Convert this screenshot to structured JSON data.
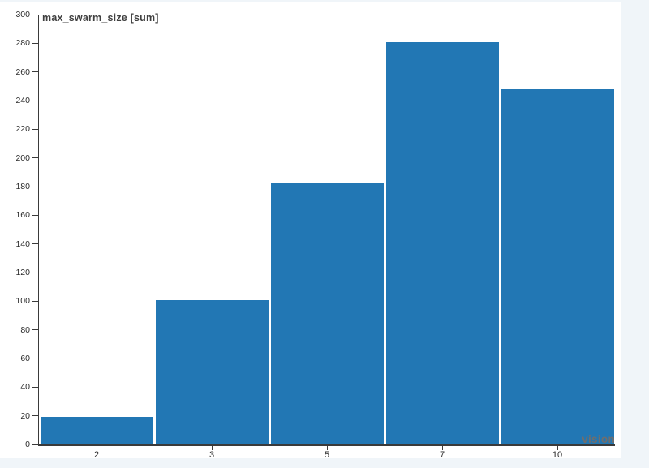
{
  "page": {
    "background_color": "#f0f5f9",
    "canvas_color": "#ffffff"
  },
  "chart_data": {
    "type": "bar",
    "title": "max_swarm_size [sum]",
    "categories": [
      "2",
      "3",
      "5",
      "7",
      "10"
    ],
    "values": [
      19,
      101,
      182,
      281,
      248
    ],
    "xlabel": "",
    "ylabel": "",
    "ylim": [
      0,
      300
    ],
    "yticks": [
      0,
      20,
      40,
      60,
      80,
      100,
      120,
      140,
      160,
      180,
      200,
      220,
      240,
      260,
      280,
      300
    ],
    "grid": false,
    "legend_position": "none",
    "bar_color": "#2277b4",
    "axis_color": "#3a3a3a",
    "tick_label_color": "#2b2b2b",
    "title_color": "#404040"
  },
  "watermark": {
    "text": "vision",
    "color": "#6e6e6e"
  }
}
